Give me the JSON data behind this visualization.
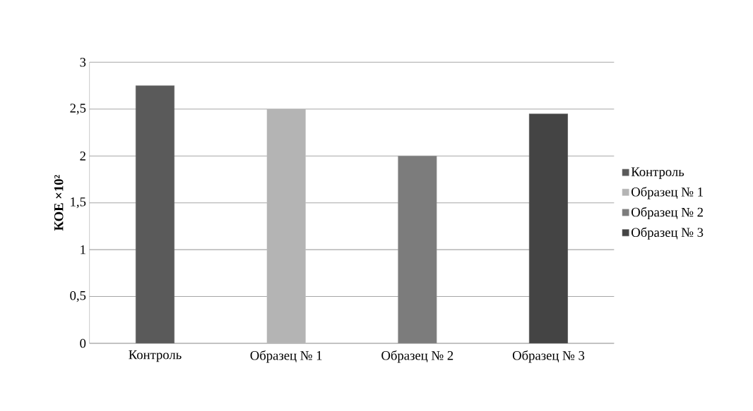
{
  "chart_data": {
    "type": "bar",
    "ylabel": "КОЕ ×10²",
    "categories": [
      "Контроль",
      "Образец № 1",
      "Образец № 2",
      "Образец № 3"
    ],
    "series": [
      {
        "name": "Контроль",
        "color": "#5a5a5a",
        "values": [
          2.75,
          null,
          null,
          null
        ]
      },
      {
        "name": "Образец № 1",
        "color": "#b4b4b4",
        "values": [
          null,
          2.5,
          null,
          null
        ]
      },
      {
        "name": "Образец № 2",
        "color": "#7c7c7c",
        "values": [
          null,
          null,
          2.0,
          null
        ]
      },
      {
        "name": "Образец № 3",
        "color": "#444444",
        "values": [
          null,
          null,
          null,
          2.45
        ]
      }
    ],
    "ylim": [
      0,
      3
    ],
    "yticks": [
      0,
      {
        "value": 0.5,
        "label": "0,5"
      },
      1,
      {
        "value": 1.5,
        "label": "1,5"
      },
      2,
      {
        "value": 2.5,
        "label": "2,5"
      },
      3
    ],
    "grid": "y",
    "legend": "right"
  }
}
